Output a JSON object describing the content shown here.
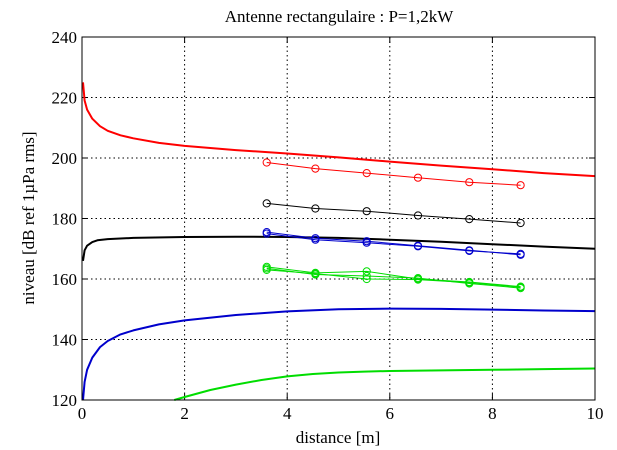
{
  "chart_data": {
    "type": "line",
    "title": "Antenne rectangulaire : P=1,2kW",
    "xlabel": "distance [m]",
    "ylabel": "niveau [dB ref 1µPa rms]",
    "xlim": [
      0,
      10
    ],
    "ylim": [
      120,
      240
    ],
    "xticks": [
      0,
      2,
      4,
      6,
      8,
      10
    ],
    "yticks": [
      120,
      140,
      160,
      180,
      200,
      220,
      240
    ],
    "grid": true,
    "grid_style": "dotted",
    "curves": [
      {
        "color": "#ff0000",
        "x": [
          0.02,
          0.05,
          0.1,
          0.2,
          0.35,
          0.5,
          0.75,
          1,
          1.5,
          2,
          3,
          4,
          5,
          6,
          7,
          8,
          9,
          10
        ],
        "y": [
          225,
          219,
          216,
          213,
          210.5,
          209,
          207.5,
          206.5,
          205,
          204,
          202.6,
          201.5,
          200.2,
          198.8,
          197.5,
          196.3,
          195,
          194
        ]
      },
      {
        "color": "#000000",
        "x": [
          0.02,
          0.05,
          0.1,
          0.2,
          0.3,
          0.5,
          1,
          2,
          3,
          4,
          5,
          6,
          7,
          8,
          9,
          10
        ],
        "y": [
          166,
          169.5,
          171,
          172.2,
          172.8,
          173.2,
          173.6,
          173.9,
          174,
          173.9,
          173.6,
          173,
          172.3,
          171.5,
          170.7,
          170
        ]
      },
      {
        "color": "#0000cc",
        "x": [
          0.02,
          0.05,
          0.1,
          0.2,
          0.35,
          0.5,
          0.75,
          1,
          1.5,
          2,
          3,
          4,
          5,
          6,
          7,
          8,
          9,
          10
        ],
        "y": [
          120,
          126,
          130,
          134,
          137.5,
          139.5,
          141.7,
          143,
          145,
          146.3,
          148.1,
          149.3,
          150,
          150.2,
          150.1,
          149.9,
          149.6,
          149.4
        ]
      },
      {
        "color": "#00dd00",
        "x": [
          1.8,
          2,
          2.5,
          3,
          3.5,
          4,
          4.5,
          5,
          5.5,
          6,
          7,
          8,
          9,
          10
        ],
        "y": [
          120,
          121,
          123.3,
          125.1,
          126.6,
          127.8,
          128.6,
          129.1,
          129.4,
          129.6,
          129.8,
          130,
          130.2,
          130.4
        ]
      }
    ],
    "measurements": [
      {
        "color": "#ff0000",
        "x": [
          3.6,
          4.55,
          5.55,
          6.55,
          7.55,
          8.55
        ],
        "y": [
          198.5,
          196.5,
          195,
          193.5,
          192,
          191
        ]
      },
      {
        "color": "#000000",
        "x": [
          3.6,
          4.55,
          5.55,
          6.55,
          7.55,
          8.55
        ],
        "y": [
          185,
          183.3,
          182.4,
          181,
          179.8,
          178.5
        ]
      },
      {
        "color": "#0000cc",
        "x": [
          3.6,
          4.55,
          5.55,
          6.55,
          7.55,
          8.55
        ],
        "y": [
          175.5,
          173.5,
          172.5,
          171,
          169.5,
          168
        ]
      },
      {
        "color": "#0000cc",
        "x": [
          3.6,
          4.55,
          5.55,
          6.55,
          7.55,
          8.55
        ],
        "y": [
          175,
          173,
          172,
          170.8,
          169.3,
          168.3
        ]
      },
      {
        "color": "#00dd00",
        "x": [
          3.6,
          4.55,
          5.55,
          6.55,
          7.55,
          8.55
        ],
        "y": [
          164,
          162,
          162.5,
          160,
          159,
          157.5
        ]
      },
      {
        "color": "#00dd00",
        "x": [
          3.6,
          4.55,
          5.55,
          6.55,
          7.55,
          8.55
        ],
        "y": [
          163.5,
          161.5,
          161,
          160.3,
          158.5,
          157
        ]
      },
      {
        "color": "#00dd00",
        "x": [
          3.6,
          4.55,
          5.55,
          6.55,
          7.55,
          8.55
        ],
        "y": [
          163,
          161.8,
          160,
          159.8,
          158.8,
          157.3
        ]
      }
    ]
  }
}
